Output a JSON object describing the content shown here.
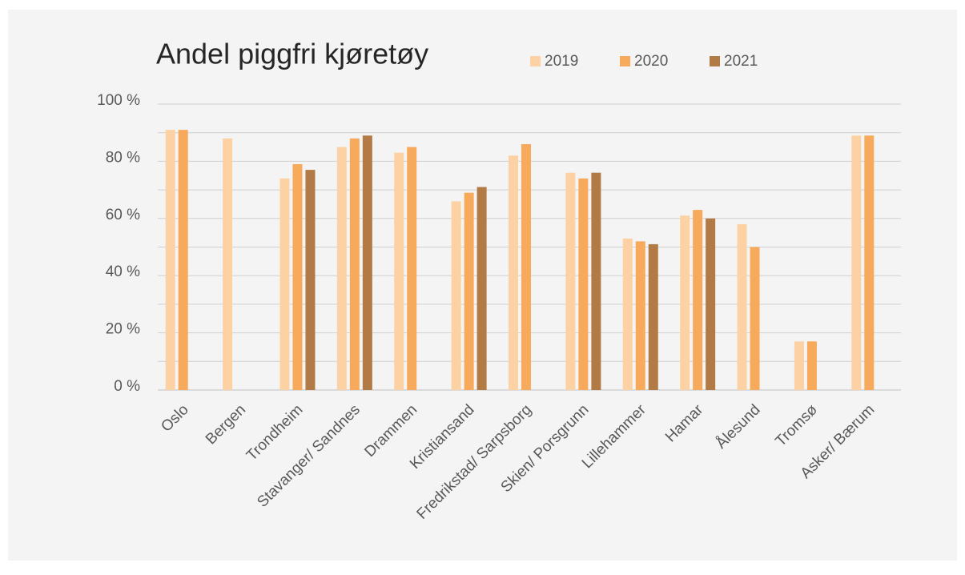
{
  "chart_data": {
    "type": "bar",
    "title": "Andel piggfri kjøretøy",
    "categories": [
      "Oslo",
      "Bergen",
      "Trondheim",
      "Stavanger/ Sandnes",
      "Drammen",
      "Kristiansand",
      "Fredrikstad/ Sarpsborg",
      "Skien/ Porsgrunn",
      "Lillehammer",
      "Hamar",
      "Ålesund",
      "Tromsø",
      "Asker/ Bærum"
    ],
    "series": [
      {
        "name": "2019",
        "color": "#fcd2a4",
        "values": [
          91,
          88,
          74,
          85,
          83,
          66,
          82,
          76,
          53,
          61,
          58,
          17,
          89
        ]
      },
      {
        "name": "2020",
        "color": "#f7aa5c",
        "values": [
          91,
          null,
          79,
          88,
          85,
          69,
          86,
          74,
          52,
          63,
          50,
          17,
          89
        ]
      },
      {
        "name": "2021",
        "color": "#b27a44",
        "values": [
          null,
          null,
          77,
          89,
          null,
          71,
          null,
          76,
          51,
          60,
          null,
          null,
          null
        ]
      }
    ],
    "ylim": [
      0,
      100
    ],
    "yticks": [
      {
        "value": 0,
        "label": "0 %"
      },
      {
        "value": 20,
        "label": "20 %"
      },
      {
        "value": 40,
        "label": "40 %"
      },
      {
        "value": 60,
        "label": "60 %"
      },
      {
        "value": 80,
        "label": "80 %"
      },
      {
        "value": 100,
        "label": "100 %"
      }
    ],
    "minor_yticks": [
      10,
      30,
      50,
      70,
      90
    ],
    "grid": true,
    "legend": "top"
  }
}
